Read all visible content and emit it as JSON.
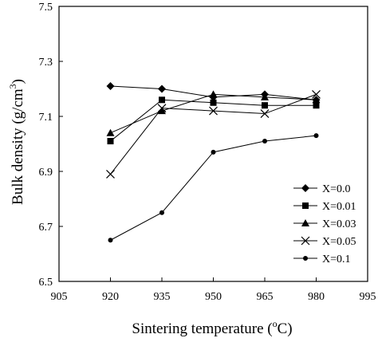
{
  "chart_data": {
    "type": "line",
    "xlabel_main": "Sintering   temperature (",
    "xlabel_sup": "o",
    "xlabel_end": "C)",
    "ylabel_main": "Bulk density  (g/cm",
    "ylabel_sup": "3",
    "ylabel_end": ")",
    "xlim": [
      905,
      995
    ],
    "ylim": [
      6.5,
      7.5
    ],
    "xticks": [
      "905",
      "920",
      "935",
      "950",
      "965",
      "980",
      "995"
    ],
    "yticks": [
      "6.5",
      "6.7",
      "6.9",
      "7.1",
      "7.3",
      "7.5"
    ],
    "legend_position": "bottom-right",
    "grid": false,
    "x": [
      920,
      935,
      950,
      965,
      980
    ],
    "series": [
      {
        "name": "X=0.0",
        "marker": "diamond",
        "values": [
          7.21,
          7.2,
          7.17,
          7.18,
          7.16
        ]
      },
      {
        "name": "X=0.01",
        "marker": "square",
        "values": [
          7.01,
          7.16,
          7.15,
          7.14,
          7.14
        ]
      },
      {
        "name": "X=0.03",
        "marker": "triangle",
        "values": [
          7.04,
          7.12,
          7.18,
          7.17,
          7.16
        ]
      },
      {
        "name": "X=0.05",
        "marker": "cross",
        "values": [
          6.89,
          7.13,
          7.12,
          7.11,
          7.18
        ]
      },
      {
        "name": "X=0.1",
        "marker": "circle",
        "values": [
          6.65,
          6.75,
          6.97,
          7.01,
          7.03
        ]
      }
    ]
  }
}
